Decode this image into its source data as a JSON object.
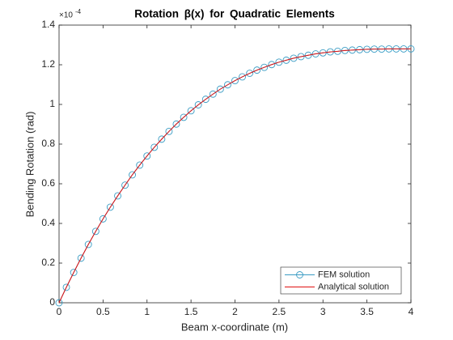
{
  "chart_data": {
    "type": "line",
    "title": "Rotation β(x) for Quadratic Elements",
    "x_label": "Beam x-coordinate (m)",
    "y_label": "Bending Rotation (rad)",
    "y_exponent_base": "×10",
    "y_exponent_power": "-4",
    "xlim": [
      0,
      4
    ],
    "xticks": [
      0,
      0.5,
      1,
      1.5,
      2,
      2.5,
      3,
      3.5,
      4
    ],
    "ylim": [
      0,
      1.4
    ],
    "yticks": [
      0,
      0.2,
      0.4,
      0.6,
      0.8,
      1,
      1.2,
      1.4
    ],
    "legend_position": "southeast",
    "series": [
      {
        "name": "FEM solution",
        "color": "#3a9cc4",
        "marker": "circle",
        "x": [
          0,
          0.083,
          0.167,
          0.25,
          0.333,
          0.417,
          0.5,
          0.583,
          0.667,
          0.75,
          0.833,
          0.917,
          1,
          1.083,
          1.167,
          1.25,
          1.333,
          1.417,
          1.5,
          1.583,
          1.667,
          1.75,
          1.833,
          1.917,
          2,
          2.083,
          2.167,
          2.25,
          2.333,
          2.417,
          2.5,
          2.583,
          2.667,
          2.75,
          2.833,
          2.917,
          3,
          3.083,
          3.167,
          3.25,
          3.333,
          3.417,
          3.5,
          3.583,
          3.667,
          3.75,
          3.833,
          3.917,
          4
        ],
        "values": [
          0,
          0.078,
          0.153,
          0.225,
          0.294,
          0.36,
          0.423,
          0.482,
          0.539,
          0.593,
          0.645,
          0.694,
          0.74,
          0.784,
          0.825,
          0.864,
          0.901,
          0.935,
          0.968,
          0.998,
          1.026,
          1.052,
          1.077,
          1.099,
          1.12,
          1.139,
          1.157,
          1.173,
          1.187,
          1.201,
          1.213,
          1.223,
          1.233,
          1.241,
          1.248,
          1.255,
          1.26,
          1.265,
          1.268,
          1.272,
          1.274,
          1.276,
          1.278,
          1.279,
          1.279,
          1.28,
          1.28,
          1.28,
          1.28
        ]
      },
      {
        "name": "Analytical solution",
        "color": "#e01010",
        "marker": "none",
        "x": [
          0,
          0.083,
          0.167,
          0.25,
          0.333,
          0.417,
          0.5,
          0.583,
          0.667,
          0.75,
          0.833,
          0.917,
          1,
          1.083,
          1.167,
          1.25,
          1.333,
          1.417,
          1.5,
          1.583,
          1.667,
          1.75,
          1.833,
          1.917,
          2,
          2.083,
          2.167,
          2.25,
          2.333,
          2.417,
          2.5,
          2.583,
          2.667,
          2.75,
          2.833,
          2.917,
          3,
          3.083,
          3.167,
          3.25,
          3.333,
          3.417,
          3.5,
          3.583,
          3.667,
          3.75,
          3.833,
          3.917,
          4
        ],
        "values": [
          0,
          0.078,
          0.153,
          0.225,
          0.294,
          0.36,
          0.423,
          0.482,
          0.539,
          0.593,
          0.645,
          0.694,
          0.74,
          0.784,
          0.825,
          0.864,
          0.901,
          0.935,
          0.968,
          0.998,
          1.026,
          1.052,
          1.077,
          1.099,
          1.12,
          1.139,
          1.157,
          1.173,
          1.187,
          1.201,
          1.213,
          1.223,
          1.233,
          1.241,
          1.248,
          1.255,
          1.26,
          1.265,
          1.268,
          1.272,
          1.274,
          1.276,
          1.278,
          1.279,
          1.279,
          1.28,
          1.28,
          1.28,
          1.28
        ]
      }
    ]
  }
}
